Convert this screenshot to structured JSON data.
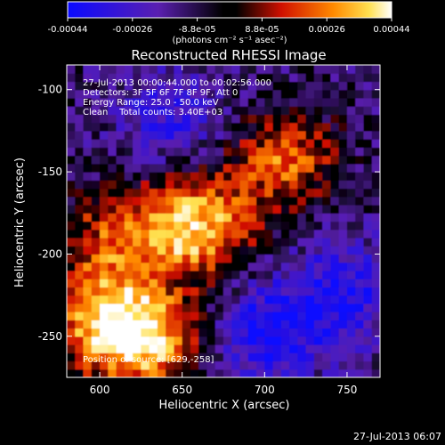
{
  "plot": {
    "title": "Reconstructed RHESSI Image",
    "xlabel": "Heliocentric X (arcsec)",
    "ylabel": "Heliocentric Y (arcsec)",
    "timestamp": "27-Jul-2013 06:07"
  },
  "colorbar": {
    "ticks": [
      "-0.00044",
      "-0.00026",
      "-8.8e-05",
      "8.8e-05",
      "0.00026",
      "0.00044"
    ],
    "unit": "(photons cm⁻² s⁻¹ asec⁻²)",
    "colors": {
      "blue": "#0a0aff",
      "purple": "#5a1fb0",
      "black": "#000000",
      "red": "#d01000",
      "orange": "#ff8a00",
      "yellow": "#ffe050",
      "white": "#ffffff"
    }
  },
  "info": {
    "time_range": "27-Jul-2013 00:00:44.000 to 00:02:56.000",
    "detectors": "Detectors: 3F 5F 6F 7F 8F 9F, Att 0",
    "energy": "Energy Range: 25.0 - 50.0 keV",
    "clean": "Clean    Total counts: 3.40E+03",
    "source_position": "Position of source: [629,-258]"
  },
  "chart_data": {
    "type": "heatmap",
    "title": "Reconstructed RHESSI Image",
    "xlabel": "Heliocentric X (arcsec)",
    "ylabel": "Heliocentric Y (arcsec)",
    "xlim": [
      580,
      770
    ],
    "ylim": [
      -275,
      -85
    ],
    "xticks": [
      600,
      650,
      700,
      750
    ],
    "yticks": [
      -100,
      -150,
      -200,
      -250
    ],
    "colorbar_range": [
      -0.00044,
      0.00044
    ],
    "hot_spots": [
      {
        "x": 640,
        "y": -185,
        "value": 0.0003
      },
      {
        "x": 600,
        "y": -245,
        "value": 0.00044
      },
      {
        "x": 630,
        "y": -255,
        "value": 0.0004
      },
      {
        "x": 710,
        "y": -145,
        "value": 0.00035
      },
      {
        "x": 665,
        "y": -185,
        "value": 0.0003
      },
      {
        "x": 600,
        "y": -195,
        "value": 0.00025
      }
    ],
    "cold_spots": [
      {
        "x": 700,
        "y": -250,
        "value": -0.0003
      },
      {
        "x": 745,
        "y": -225,
        "value": -0.00025
      },
      {
        "x": 640,
        "y": -120,
        "value": -0.0002
      }
    ]
  }
}
